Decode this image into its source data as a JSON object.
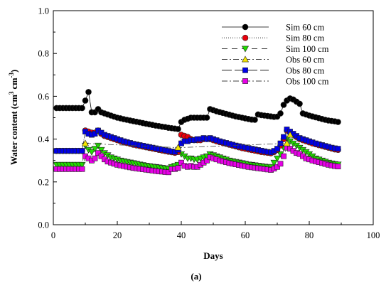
{
  "chart_data": {
    "type": "line",
    "xlabel": "Days",
    "ylabel_main": "Water content (cm",
    "ylabel_sup1": "3",
    "ylabel_mid": " cm",
    "ylabel_sup2": "-3",
    "ylabel_end": ")",
    "caption": "(a)",
    "xlim": [
      0,
      100
    ],
    "ylim": [
      0.0,
      1.0
    ],
    "xticks": [
      "0",
      "20",
      "40",
      "60",
      "80",
      "100"
    ],
    "yticks": [
      "0.0",
      "0.2",
      "0.4",
      "0.6",
      "0.8",
      "1.0"
    ],
    "legend_position": "top-right",
    "series": [
      {
        "name": "Sim 60 cm",
        "marker": "circle",
        "color": "#000000",
        "line": "solid",
        "x": [
          1,
          2,
          3,
          4,
          5,
          6,
          7,
          8,
          9,
          10,
          11,
          12,
          13,
          14,
          15,
          16,
          17,
          18,
          19,
          20,
          21,
          22,
          23,
          24,
          25,
          26,
          27,
          28,
          29,
          30,
          31,
          32,
          33,
          34,
          35,
          36,
          37,
          38,
          39,
          40,
          41,
          42,
          43,
          44,
          45,
          46,
          47,
          48,
          49,
          50,
          51,
          52,
          53,
          54,
          55,
          56,
          57,
          58,
          59,
          60,
          61,
          62,
          63,
          64,
          65,
          66,
          67,
          68,
          69,
          70,
          71,
          72,
          73,
          74,
          75,
          76,
          77,
          78,
          79,
          80,
          81,
          82,
          83,
          84,
          85,
          86,
          87,
          88,
          89
        ],
        "y": [
          0.545,
          0.545,
          0.545,
          0.545,
          0.545,
          0.545,
          0.545,
          0.545,
          0.545,
          0.58,
          0.62,
          0.525,
          0.525,
          0.54,
          0.525,
          0.52,
          0.515,
          0.51,
          0.505,
          0.5,
          0.497,
          0.493,
          0.49,
          0.487,
          0.484,
          0.481,
          0.478,
          0.475,
          0.472,
          0.469,
          0.466,
          0.463,
          0.461,
          0.458,
          0.456,
          0.453,
          0.451,
          0.449,
          0.447,
          0.48,
          0.49,
          0.495,
          0.5,
          0.5,
          0.5,
          0.5,
          0.5,
          0.5,
          0.54,
          0.535,
          0.53,
          0.526,
          0.522,
          0.518,
          0.514,
          0.51,
          0.506,
          0.503,
          0.5,
          0.497,
          0.494,
          0.491,
          0.49,
          0.515,
          0.512,
          0.51,
          0.508,
          0.506,
          0.504,
          0.505,
          0.52,
          0.56,
          0.58,
          0.59,
          0.585,
          0.575,
          0.565,
          0.52,
          0.515,
          0.51,
          0.506,
          0.502,
          0.498,
          0.494,
          0.49,
          0.487,
          0.485,
          0.483,
          0.48
        ]
      },
      {
        "name": "Sim 80 cm",
        "marker": "circle",
        "color": "#e8000b",
        "line": "dotted",
        "x": [
          1,
          2,
          3,
          4,
          5,
          6,
          7,
          8,
          9,
          10,
          11,
          12,
          13,
          14,
          15,
          16,
          17,
          18,
          19,
          20,
          21,
          22,
          23,
          24,
          25,
          26,
          27,
          28,
          29,
          30,
          31,
          32,
          33,
          34,
          35,
          36,
          37,
          38,
          39,
          40,
          41,
          42,
          43,
          44,
          45,
          46,
          47,
          48,
          49,
          50,
          51,
          52,
          53,
          54,
          55,
          56,
          57,
          58,
          59,
          60,
          61,
          62,
          63,
          64,
          65,
          66,
          67,
          68,
          69,
          70,
          71,
          72,
          73,
          74,
          75,
          76,
          77,
          78,
          79,
          80,
          81,
          82,
          83,
          84,
          85,
          86,
          87,
          88,
          89
        ],
        "y": [
          0.345,
          0.345,
          0.345,
          0.345,
          0.345,
          0.345,
          0.345,
          0.345,
          0.345,
          0.44,
          0.435,
          0.43,
          0.43,
          0.44,
          0.425,
          0.415,
          0.41,
          0.405,
          0.4,
          0.395,
          0.39,
          0.386,
          0.382,
          0.378,
          0.374,
          0.371,
          0.368,
          0.365,
          0.362,
          0.359,
          0.356,
          0.353,
          0.35,
          0.347,
          0.344,
          0.341,
          0.339,
          0.336,
          0.34,
          0.42,
          0.415,
          0.41,
          0.4,
          0.395,
          0.395,
          0.395,
          0.4,
          0.4,
          0.4,
          0.395,
          0.39,
          0.386,
          0.382,
          0.378,
          0.374,
          0.37,
          0.366,
          0.362,
          0.358,
          0.355,
          0.352,
          0.349,
          0.346,
          0.343,
          0.34,
          0.338,
          0.336,
          0.334,
          0.34,
          0.35,
          0.37,
          0.4,
          0.44,
          0.43,
          0.42,
          0.41,
          0.4,
          0.395,
          0.39,
          0.385,
          0.38,
          0.376,
          0.372,
          0.368,
          0.364,
          0.36,
          0.356,
          0.352,
          0.35
        ]
      },
      {
        "name": "Sim 100 cm",
        "marker": "triangle-down",
        "color": "#22dd00",
        "line": "dashed",
        "x": [
          1,
          2,
          3,
          4,
          5,
          6,
          7,
          8,
          9,
          10,
          11,
          12,
          13,
          14,
          15,
          16,
          17,
          18,
          19,
          20,
          21,
          22,
          23,
          24,
          25,
          26,
          27,
          28,
          29,
          30,
          31,
          32,
          33,
          34,
          35,
          36,
          37,
          38,
          39,
          40,
          41,
          42,
          43,
          44,
          45,
          46,
          47,
          48,
          49,
          50,
          51,
          52,
          53,
          54,
          55,
          56,
          57,
          58,
          59,
          60,
          61,
          62,
          63,
          64,
          65,
          66,
          67,
          68,
          69,
          70,
          71,
          72,
          73,
          74,
          75,
          76,
          77,
          78,
          79,
          80,
          81,
          82,
          83,
          84,
          85,
          86,
          87,
          88,
          89
        ],
        "y": [
          0.28,
          0.28,
          0.28,
          0.28,
          0.28,
          0.28,
          0.28,
          0.28,
          0.28,
          0.37,
          0.35,
          0.34,
          0.355,
          0.37,
          0.35,
          0.335,
          0.325,
          0.315,
          0.31,
          0.305,
          0.3,
          0.297,
          0.294,
          0.291,
          0.288,
          0.285,
          0.282,
          0.279,
          0.276,
          0.274,
          0.272,
          0.27,
          0.268,
          0.266,
          0.264,
          0.262,
          0.27,
          0.275,
          0.28,
          0.33,
          0.32,
          0.31,
          0.31,
          0.305,
          0.305,
          0.31,
          0.315,
          0.32,
          0.33,
          0.325,
          0.32,
          0.315,
          0.31,
          0.305,
          0.3,
          0.297,
          0.294,
          0.291,
          0.288,
          0.285,
          0.282,
          0.28,
          0.278,
          0.276,
          0.274,
          0.272,
          0.27,
          0.27,
          0.29,
          0.31,
          0.33,
          0.36,
          0.4,
          0.39,
          0.38,
          0.37,
          0.36,
          0.35,
          0.34,
          0.33,
          0.32,
          0.31,
          0.305,
          0.3,
          0.295,
          0.29,
          0.287,
          0.284,
          0.282
        ]
      },
      {
        "name": "Obs 60 cm",
        "marker": "triangle-up",
        "color": "#f5e600",
        "line": "dash-dot",
        "x": [
          10,
          39,
          73,
          74
        ],
        "y": [
          0.38,
          0.36,
          0.38,
          0.42
        ]
      },
      {
        "name": "Obs 80 cm",
        "marker": "square",
        "color": "#0000e6",
        "line": "long-dash",
        "x": [
          1,
          2,
          3,
          4,
          5,
          6,
          7,
          8,
          9,
          10,
          11,
          12,
          13,
          14,
          15,
          16,
          17,
          18,
          19,
          20,
          21,
          22,
          23,
          24,
          25,
          26,
          27,
          28,
          29,
          30,
          31,
          32,
          33,
          34,
          35,
          36,
          37,
          38,
          39,
          40,
          41,
          42,
          43,
          44,
          45,
          46,
          47,
          48,
          49,
          50,
          51,
          52,
          53,
          54,
          55,
          56,
          57,
          58,
          59,
          60,
          61,
          62,
          63,
          64,
          65,
          66,
          67,
          68,
          69,
          70,
          71,
          72,
          73,
          74,
          75,
          76,
          77,
          78,
          79,
          80,
          81,
          82,
          83,
          84,
          85,
          86,
          87,
          88,
          89
        ],
        "y": [
          0.345,
          0.345,
          0.345,
          0.345,
          0.345,
          0.345,
          0.345,
          0.345,
          0.345,
          0.435,
          0.425,
          0.42,
          0.425,
          0.44,
          0.43,
          0.42,
          0.415,
          0.41,
          0.405,
          0.4,
          0.395,
          0.39,
          0.386,
          0.382,
          0.378,
          0.375,
          0.372,
          0.369,
          0.366,
          0.363,
          0.36,
          0.357,
          0.354,
          0.351,
          0.348,
          0.345,
          0.342,
          0.34,
          0.35,
          0.38,
          0.39,
          0.39,
          0.395,
          0.395,
          0.4,
          0.4,
          0.405,
          0.4,
          0.405,
          0.4,
          0.395,
          0.39,
          0.386,
          0.382,
          0.378,
          0.374,
          0.37,
          0.367,
          0.364,
          0.361,
          0.358,
          0.355,
          0.352,
          0.349,
          0.346,
          0.343,
          0.34,
          0.338,
          0.345,
          0.355,
          0.38,
          0.41,
          0.445,
          0.435,
          0.425,
          0.415,
          0.405,
          0.4,
          0.395,
          0.39,
          0.385,
          0.38,
          0.376,
          0.372,
          0.368,
          0.364,
          0.36,
          0.357,
          0.355
        ]
      },
      {
        "name": "Obs 100 cm",
        "marker": "square",
        "color": "#e600e6",
        "line": "dash-dot",
        "x": [
          1,
          2,
          3,
          4,
          5,
          6,
          7,
          8,
          9,
          10,
          11,
          12,
          13,
          14,
          15,
          16,
          17,
          18,
          19,
          20,
          21,
          22,
          23,
          24,
          25,
          26,
          27,
          28,
          29,
          30,
          31,
          32,
          33,
          34,
          35,
          36,
          37,
          38,
          39,
          40,
          41,
          42,
          43,
          44,
          45,
          46,
          47,
          48,
          49,
          50,
          51,
          52,
          53,
          54,
          55,
          56,
          57,
          58,
          59,
          60,
          61,
          62,
          63,
          64,
          65,
          66,
          67,
          68,
          69,
          70,
          71,
          72,
          73,
          74,
          75,
          76,
          77,
          78,
          79,
          80,
          81,
          82,
          83,
          84,
          85,
          86,
          87,
          88,
          89
        ],
        "y": [
          0.26,
          0.26,
          0.26,
          0.26,
          0.26,
          0.26,
          0.26,
          0.26,
          0.26,
          0.32,
          0.31,
          0.3,
          0.31,
          0.335,
          0.32,
          0.305,
          0.295,
          0.29,
          0.285,
          0.28,
          0.277,
          0.274,
          0.271,
          0.268,
          0.265,
          0.263,
          0.261,
          0.259,
          0.257,
          0.255,
          0.253,
          0.251,
          0.249,
          0.248,
          0.246,
          0.245,
          0.26,
          0.26,
          0.265,
          0.29,
          0.275,
          0.27,
          0.275,
          0.27,
          0.27,
          0.28,
          0.29,
          0.3,
          0.315,
          0.31,
          0.305,
          0.3,
          0.296,
          0.292,
          0.288,
          0.285,
          0.282,
          0.279,
          0.276,
          0.273,
          0.27,
          0.268,
          0.266,
          0.264,
          0.262,
          0.26,
          0.258,
          0.256,
          0.262,
          0.27,
          0.285,
          0.32,
          0.36,
          0.355,
          0.345,
          0.335,
          0.33,
          0.32,
          0.31,
          0.305,
          0.3,
          0.296,
          0.292,
          0.288,
          0.284,
          0.28,
          0.277,
          0.274,
          0.272
        ]
      }
    ]
  }
}
